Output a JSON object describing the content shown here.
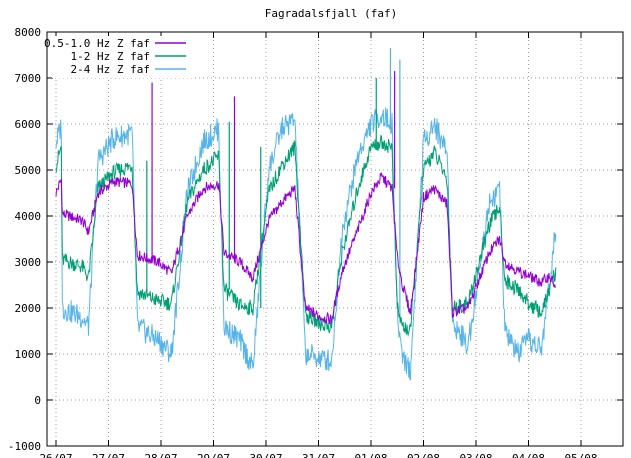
{
  "chart_data": {
    "type": "line",
    "title": "Fagradalsfjall (faf)",
    "xlabel": "",
    "ylabel": "",
    "ylim": [
      -1000,
      8000
    ],
    "yticks": [
      -1000,
      0,
      1000,
      2000,
      3000,
      4000,
      5000,
      6000,
      7000,
      8000
    ],
    "xlim": [
      0,
      11
    ],
    "xticks": [
      {
        "x": 0,
        "label": "26/07"
      },
      {
        "x": 1,
        "label": "27/07"
      },
      {
        "x": 2,
        "label": "28/07"
      },
      {
        "x": 3,
        "label": "29/07"
      },
      {
        "x": 4,
        "label": "30/07"
      },
      {
        "x": 5,
        "label": "31/07"
      },
      {
        "x": 6,
        "label": "01/08"
      },
      {
        "x": 7,
        "label": "02/08"
      },
      {
        "x": 8,
        "label": "03/08"
      },
      {
        "x": 9,
        "label": "04/08"
      },
      {
        "x": 10,
        "label": "05/08"
      }
    ],
    "grid": true,
    "legend_position": "top-left",
    "series": [
      {
        "name": "0.5-1.0 Hz Z faf",
        "color": "#9400d3",
        "points": [
          [
            0,
            4500
          ],
          [
            0.1,
            4800
          ],
          [
            0.12,
            4050
          ],
          [
            0.5,
            3900
          ],
          [
            0.62,
            3650
          ],
          [
            0.8,
            4500
          ],
          [
            1.1,
            4750
          ],
          [
            1.45,
            4700
          ],
          [
            1.55,
            3150
          ],
          [
            1.95,
            3000
          ],
          [
            2.2,
            2750
          ],
          [
            2.5,
            4000
          ],
          [
            2.8,
            4600
          ],
          [
            3.1,
            4700
          ],
          [
            3.2,
            3200
          ],
          [
            3.5,
            3000
          ],
          [
            3.75,
            2650
          ],
          [
            4.05,
            3900
          ],
          [
            4.3,
            4300
          ],
          [
            4.55,
            4600
          ],
          [
            4.75,
            2000
          ],
          [
            5.05,
            1800
          ],
          [
            5.25,
            1750
          ],
          [
            5.45,
            2800
          ],
          [
            5.75,
            3700
          ],
          [
            6.0,
            4500
          ],
          [
            6.2,
            4850
          ],
          [
            6.4,
            4600
          ],
          [
            6.5,
            3100
          ],
          [
            6.6,
            2500
          ],
          [
            6.75,
            1900
          ],
          [
            7.0,
            4400
          ],
          [
            7.2,
            4600
          ],
          [
            7.45,
            4250
          ],
          [
            7.55,
            1900
          ],
          [
            7.85,
            2000
          ],
          [
            8.25,
            3200
          ],
          [
            8.45,
            3500
          ],
          [
            8.55,
            3000
          ],
          [
            8.8,
            2800
          ],
          [
            9.0,
            2700
          ],
          [
            9.25,
            2550
          ],
          [
            9.4,
            2700
          ],
          [
            9.52,
            2450
          ]
        ]
      },
      {
        "name": "1-2 Hz Z faf",
        "color": "#009e73",
        "points": [
          [
            0,
            5100
          ],
          [
            0.1,
            5500
          ],
          [
            0.12,
            3050
          ],
          [
            0.5,
            2900
          ],
          [
            0.62,
            2650
          ],
          [
            0.8,
            4600
          ],
          [
            1.1,
            4950
          ],
          [
            1.45,
            5100
          ],
          [
            1.55,
            2350
          ],
          [
            1.95,
            2150
          ],
          [
            2.2,
            2100
          ],
          [
            2.5,
            4300
          ],
          [
            2.8,
            5000
          ],
          [
            3.1,
            5300
          ],
          [
            3.2,
            2400
          ],
          [
            3.5,
            2050
          ],
          [
            3.75,
            2000
          ],
          [
            4.05,
            4500
          ],
          [
            4.3,
            5100
          ],
          [
            4.55,
            5500
          ],
          [
            4.75,
            1850
          ],
          [
            5.05,
            1650
          ],
          [
            5.25,
            1600
          ],
          [
            5.45,
            3200
          ],
          [
            5.75,
            4600
          ],
          [
            6.0,
            5500
          ],
          [
            6.2,
            5600
          ],
          [
            6.4,
            5500
          ],
          [
            6.5,
            2000
          ],
          [
            6.6,
            1600
          ],
          [
            6.75,
            1500
          ],
          [
            7.0,
            5000
          ],
          [
            7.2,
            5400
          ],
          [
            7.45,
            4800
          ],
          [
            7.55,
            2000
          ],
          [
            7.85,
            2100
          ],
          [
            8.25,
            3800
          ],
          [
            8.45,
            4200
          ],
          [
            8.55,
            2600
          ],
          [
            8.8,
            2400
          ],
          [
            9.0,
            2100
          ],
          [
            9.25,
            1900
          ],
          [
            9.4,
            2400
          ],
          [
            9.52,
            2800
          ]
        ]
      },
      {
        "name": "2-4 Hz Z faf",
        "color": "#56b4e9",
        "points": [
          [
            0,
            5600
          ],
          [
            0.1,
            5950
          ],
          [
            0.12,
            2000
          ],
          [
            0.5,
            1800
          ],
          [
            0.62,
            1600
          ],
          [
            0.8,
            5200
          ],
          [
            1.1,
            5700
          ],
          [
            1.45,
            5800
          ],
          [
            1.55,
            1600
          ],
          [
            1.95,
            1300
          ],
          [
            2.2,
            1000
          ],
          [
            2.5,
            4500
          ],
          [
            2.8,
            5600
          ],
          [
            3.1,
            5900
          ],
          [
            3.2,
            1600
          ],
          [
            3.5,
            1300
          ],
          [
            3.75,
            700
          ],
          [
            4.05,
            5000
          ],
          [
            4.3,
            5900
          ],
          [
            4.55,
            6100
          ],
          [
            4.75,
            1000
          ],
          [
            5.05,
            900
          ],
          [
            5.25,
            850
          ],
          [
            5.45,
            3700
          ],
          [
            5.75,
            5300
          ],
          [
            6.0,
            6000
          ],
          [
            6.2,
            6200
          ],
          [
            6.4,
            6000
          ],
          [
            6.5,
            1800
          ],
          [
            6.6,
            1000
          ],
          [
            6.75,
            600
          ],
          [
            7.0,
            5600
          ],
          [
            7.2,
            6000
          ],
          [
            7.45,
            5400
          ],
          [
            7.55,
            1700
          ],
          [
            7.85,
            1200
          ],
          [
            8.25,
            4300
          ],
          [
            8.45,
            4600
          ],
          [
            8.55,
            1500
          ],
          [
            8.8,
            1000
          ],
          [
            9.0,
            1300
          ],
          [
            9.25,
            1100
          ],
          [
            9.4,
            2600
          ],
          [
            9.52,
            3700
          ]
        ]
      }
    ],
    "spikes": [
      {
        "series": 0,
        "x": 1.83,
        "y": 6900
      },
      {
        "series": 0,
        "x": 3.4,
        "y": 6600
      },
      {
        "series": 0,
        "x": 6.45,
        "y": 7150
      },
      {
        "series": 1,
        "x": 1.73,
        "y": 5200
      },
      {
        "series": 1,
        "x": 3.3,
        "y": 6050
      },
      {
        "series": 1,
        "x": 3.9,
        "y": 5500
      },
      {
        "series": 1,
        "x": 6.1,
        "y": 7000
      },
      {
        "series": 2,
        "x": 6.37,
        "y": 7650
      },
      {
        "series": 2,
        "x": 6.55,
        "y": 7400
      }
    ]
  }
}
